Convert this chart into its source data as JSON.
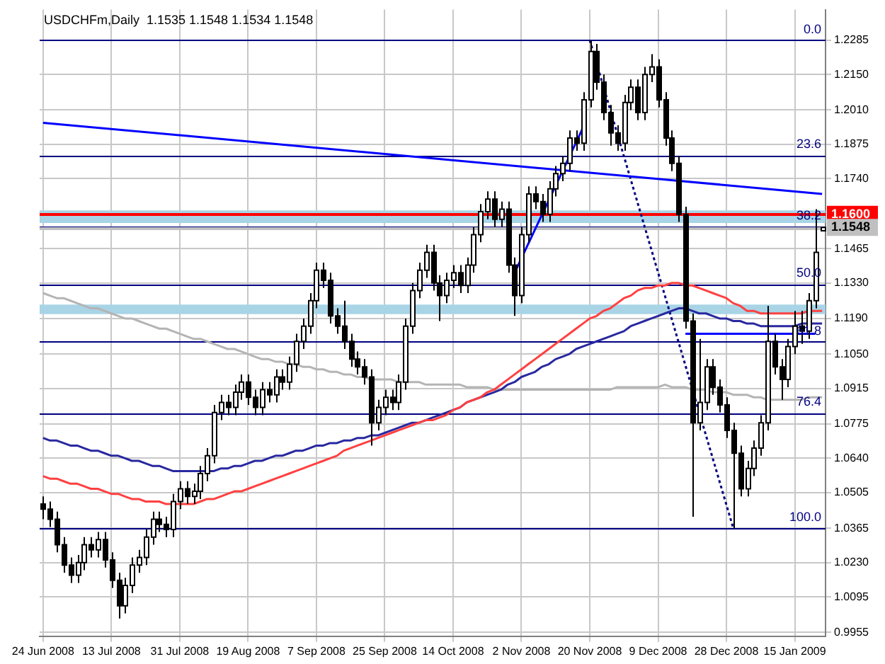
{
  "chart_data": {
    "type": "candlestick",
    "title": "USDCHFm,Daily  1.1535 1.1548 1.1534 1.1548",
    "categories": [
      "24 Jun 2008",
      null,
      null,
      null,
      null,
      null,
      null,
      null,
      null,
      null,
      "13 Jul 2008",
      null,
      null,
      null,
      null,
      null,
      null,
      null,
      null,
      null,
      "31 Jul 2008",
      null,
      null,
      null,
      null,
      null,
      null,
      null,
      null,
      null,
      "19 Aug 2008",
      null,
      null,
      null,
      null,
      null,
      null,
      null,
      null,
      null,
      "7 Sep 2008",
      null,
      null,
      null,
      null,
      null,
      null,
      null,
      null,
      null,
      "25 Sep 2008",
      null,
      null,
      null,
      null,
      null,
      null,
      null,
      null,
      null,
      "14 Oct 2008",
      null,
      null,
      null,
      null,
      null,
      null,
      null,
      null,
      null,
      "2 Nov 2008",
      null,
      null,
      null,
      null,
      null,
      null,
      null,
      null,
      null,
      "20 Nov 2008",
      null,
      null,
      null,
      null,
      null,
      null,
      null,
      null,
      null,
      "9 Dec 2008",
      null,
      null,
      null,
      null,
      null,
      null,
      null,
      null,
      null,
      "28 Dec 2008",
      null,
      null,
      null,
      null,
      null,
      null,
      null,
      null,
      null,
      "15 Jan 2009",
      null,
      null,
      null,
      null
    ],
    "color": "#000000",
    "colors": [
      "#000000",
      "#000000",
      "#000000",
      "#000000",
      "#000000",
      "#ffffff",
      "#ffffff",
      "#000000",
      "#ffffff",
      "#000000",
      "#000000",
      "#000000",
      "#ffffff",
      "#ffffff",
      "#ffffff",
      "#ffffff",
      "#ffffff",
      "#000000",
      "#000000",
      "#ffffff",
      "#ffffff",
      "#000000",
      "#ffffff",
      "#ffffff",
      "#ffffff",
      "#ffffff",
      "#ffffff",
      "#000000",
      "#ffffff",
      "#ffffff",
      "#000000",
      "#000000",
      "#ffffff",
      "#000000",
      "#ffffff",
      "#000000",
      "#ffffff",
      "#ffffff",
      "#ffffff",
      "#ffffff",
      "#ffffff",
      "#000000",
      "#000000",
      "#000000",
      "#000000",
      "#000000",
      "#000000",
      "#000000",
      "#000000",
      "#ffffff",
      "#ffffff",
      "#000000",
      "#ffffff",
      "#ffffff",
      "#ffffff",
      "#ffffff",
      "#ffffff",
      "#000000",
      "#000000",
      "#ffffff",
      "#ffffff",
      "#000000",
      "#ffffff",
      "#ffffff",
      "#ffffff",
      "#ffffff",
      "#000000",
      "#ffffff",
      "#000000",
      "#000000",
      "#ffffff",
      "#ffffff",
      "#000000",
      "#000000",
      "#ffffff",
      "#ffffff",
      "#ffffff",
      "#ffffff",
      "#000000",
      "#ffffff",
      "#ffffff",
      "#000000",
      "#000000",
      "#000000",
      "#000000",
      "#ffffff",
      "#ffffff",
      "#000000",
      "#ffffff",
      "#ffffff",
      "#000000",
      "#000000",
      "#000000",
      "#000000",
      "#000000",
      "#000000",
      "#ffffff",
      "#ffffff",
      "#000000",
      "#000000",
      "#000000",
      "#000000",
      "#000000",
      "#ffffff",
      "#ffffff",
      "#ffffff",
      "#ffffff",
      "#000000",
      "#000000",
      "#ffffff",
      "#ffffff",
      "#000000",
      "#ffffff",
      "#ffffff",
      "#ffffff"
    ],
    "ohlc": [
      [
        1.046,
        1.049,
        1.04,
        1.044
      ],
      [
        1.044,
        1.047,
        1.037,
        1.04
      ],
      [
        1.04,
        1.043,
        1.027,
        1.03
      ],
      [
        1.03,
        1.033,
        1.019,
        1.022
      ],
      [
        1.022,
        1.025,
        1.015,
        1.018
      ],
      [
        1.018,
        1.026,
        1.015,
        1.023
      ],
      [
        1.023,
        1.033,
        1.02,
        1.03
      ],
      [
        1.03,
        1.033,
        1.025,
        1.028
      ],
      [
        1.028,
        1.035,
        1.025,
        1.032
      ],
      [
        1.032,
        1.035,
        1.021,
        1.024
      ],
      [
        1.024,
        1.027,
        1.013,
        1.016
      ],
      [
        1.016,
        1.019,
        1.001,
        1.006
      ],
      [
        1.006,
        1.017,
        1.003,
        1.014
      ],
      [
        1.014,
        1.025,
        1.011,
        1.022
      ],
      [
        1.022,
        1.028,
        1.019,
        1.025
      ],
      [
        1.025,
        1.036,
        1.022,
        1.033
      ],
      [
        1.033,
        1.043,
        1.03,
        1.04
      ],
      [
        1.04,
        1.043,
        1.035,
        1.038
      ],
      [
        1.038,
        1.041,
        1.033,
        1.036
      ],
      [
        1.036,
        1.05,
        1.033,
        1.047
      ],
      [
        1.047,
        1.055,
        1.044,
        1.052
      ],
      [
        1.052,
        1.055,
        1.046,
        1.049
      ],
      [
        1.049,
        1.054,
        1.046,
        1.051
      ],
      [
        1.051,
        1.061,
        1.048,
        1.058
      ],
      [
        1.058,
        1.068,
        1.055,
        1.065
      ],
      [
        1.065,
        1.085,
        1.062,
        1.082
      ],
      [
        1.082,
        1.089,
        1.079,
        1.086
      ],
      [
        1.086,
        1.089,
        1.081,
        1.084
      ],
      [
        1.084,
        1.093,
        1.081,
        1.09
      ],
      [
        1.09,
        1.097,
        1.087,
        1.094
      ],
      [
        1.094,
        1.097,
        1.085,
        1.088
      ],
      [
        1.088,
        1.091,
        1.081,
        1.084
      ],
      [
        1.084,
        1.094,
        1.081,
        1.091
      ],
      [
        1.091,
        1.094,
        1.086,
        1.089
      ],
      [
        1.089,
        1.099,
        1.086,
        1.096
      ],
      [
        1.096,
        1.099,
        1.091,
        1.094
      ],
      [
        1.094,
        1.104,
        1.091,
        1.101
      ],
      [
        1.101,
        1.113,
        1.098,
        1.11
      ],
      [
        1.11,
        1.119,
        1.107,
        1.116
      ],
      [
        1.116,
        1.129,
        1.113,
        1.126
      ],
      [
        1.126,
        1.141,
        1.123,
        1.138
      ],
      [
        1.138,
        1.141,
        1.131,
        1.134
      ],
      [
        1.134,
        1.137,
        1.117,
        1.12
      ],
      [
        1.12,
        1.123,
        1.113,
        1.116
      ],
      [
        1.116,
        1.126,
        1.107,
        1.11
      ],
      [
        1.11,
        1.113,
        1.1,
        1.103
      ],
      [
        1.103,
        1.106,
        1.097,
        1.1
      ],
      [
        1.1,
        1.103,
        1.093,
        1.096
      ],
      [
        1.096,
        1.099,
        1.069,
        1.078
      ],
      [
        1.078,
        1.087,
        1.075,
        1.084
      ],
      [
        1.084,
        1.091,
        1.081,
        1.088
      ],
      [
        1.088,
        1.091,
        1.083,
        1.086
      ],
      [
        1.086,
        1.097,
        1.083,
        1.094
      ],
      [
        1.094,
        1.119,
        1.091,
        1.116
      ],
      [
        1.116,
        1.133,
        1.113,
        1.13
      ],
      [
        1.13,
        1.141,
        1.127,
        1.138
      ],
      [
        1.138,
        1.148,
        1.135,
        1.145
      ],
      [
        1.145,
        1.148,
        1.13,
        1.133
      ],
      [
        1.133,
        1.136,
        1.118,
        1.128
      ],
      [
        1.128,
        1.137,
        1.125,
        1.134
      ],
      [
        1.134,
        1.14,
        1.131,
        1.137
      ],
      [
        1.137,
        1.14,
        1.129,
        1.132
      ],
      [
        1.132,
        1.143,
        1.129,
        1.14
      ],
      [
        1.14,
        1.155,
        1.137,
        1.152
      ],
      [
        1.152,
        1.164,
        1.149,
        1.161
      ],
      [
        1.161,
        1.169,
        1.158,
        1.166
      ],
      [
        1.166,
        1.169,
        1.155,
        1.158
      ],
      [
        1.158,
        1.165,
        1.155,
        1.162
      ],
      [
        1.162,
        1.165,
        1.137,
        1.14
      ],
      [
        1.14,
        1.143,
        1.12,
        1.128
      ],
      [
        1.128,
        1.155,
        1.125,
        1.152
      ],
      [
        1.152,
        1.171,
        1.149,
        1.168
      ],
      [
        1.168,
        1.171,
        1.162,
        1.165
      ],
      [
        1.165,
        1.168,
        1.157,
        1.16
      ],
      [
        1.16,
        1.173,
        1.157,
        1.17
      ],
      [
        1.17,
        1.179,
        1.167,
        1.176
      ],
      [
        1.176,
        1.183,
        1.173,
        1.18
      ],
      [
        1.18,
        1.193,
        1.177,
        1.19
      ],
      [
        1.19,
        1.193,
        1.185,
        1.188
      ],
      [
        1.188,
        1.208,
        1.185,
        1.205
      ],
      [
        1.205,
        1.2285,
        1.202,
        1.224
      ],
      [
        1.224,
        1.227,
        1.209,
        1.212
      ],
      [
        1.212,
        1.215,
        1.197,
        1.2
      ],
      [
        1.2,
        1.203,
        1.187,
        1.192
      ],
      [
        1.192,
        1.195,
        1.185,
        1.188
      ],
      [
        1.188,
        1.207,
        1.185,
        1.204
      ],
      [
        1.204,
        1.213,
        1.201,
        1.21
      ],
      [
        1.21,
        1.213,
        1.197,
        1.2
      ],
      [
        1.2,
        1.218,
        1.197,
        1.215
      ],
      [
        1.215,
        1.223,
        1.212,
        1.218
      ],
      [
        1.218,
        1.221,
        1.202,
        1.205
      ],
      [
        1.205,
        1.208,
        1.187,
        1.19
      ],
      [
        1.19,
        1.193,
        1.177,
        1.18
      ],
      [
        1.18,
        1.183,
        1.157,
        1.16
      ],
      [
        1.16,
        1.163,
        1.115,
        1.118
      ],
      [
        1.118,
        1.121,
        1.041,
        1.078
      ],
      [
        1.078,
        1.111,
        1.075,
        1.086
      ],
      [
        1.086,
        1.103,
        1.083,
        1.1
      ],
      [
        1.1,
        1.103,
        1.089,
        1.092
      ],
      [
        1.092,
        1.095,
        1.082,
        1.085
      ],
      [
        1.085,
        1.088,
        1.072,
        1.075
      ],
      [
        1.075,
        1.078,
        1.0365,
        1.066
      ],
      [
        1.066,
        1.069,
        1.049,
        1.052
      ],
      [
        1.052,
        1.063,
        1.049,
        1.06
      ],
      [
        1.06,
        1.071,
        1.057,
        1.068
      ],
      [
        1.068,
        1.081,
        1.065,
        1.078
      ],
      [
        1.078,
        1.124,
        1.075,
        1.11
      ],
      [
        1.11,
        1.113,
        1.097,
        1.1
      ],
      [
        1.1,
        1.103,
        1.087,
        1.095
      ],
      [
        1.095,
        1.111,
        1.092,
        1.108
      ],
      [
        1.108,
        1.122,
        1.105,
        1.116
      ],
      [
        1.116,
        1.122,
        1.109,
        1.114
      ],
      [
        1.114,
        1.129,
        1.111,
        1.126
      ],
      [
        1.126,
        1.162,
        1.123,
        1.145
      ],
      [
        1.1535,
        1.1548,
        1.1534,
        1.1548
      ]
    ],
    "series": [
      {
        "type": "line",
        "color": "#ff4040",
        "values": [
          1.057,
          1.056,
          1.056,
          1.055,
          1.054,
          1.054,
          1.053,
          1.052,
          1.052,
          1.051,
          1.05,
          1.05,
          1.049,
          1.048,
          1.048,
          1.047,
          1.047,
          1.047,
          1.046,
          1.046,
          1.046,
          1.046,
          1.046,
          1.047,
          1.048,
          1.048,
          1.049,
          1.05,
          1.051,
          1.051,
          1.052,
          1.053,
          1.054,
          1.055,
          1.056,
          1.057,
          1.058,
          1.059,
          1.06,
          1.061,
          1.062,
          1.063,
          1.064,
          1.065,
          1.067,
          1.068,
          1.069,
          1.07,
          1.071,
          1.072,
          1.073,
          1.074,
          1.075,
          1.076,
          1.077,
          1.078,
          1.079,
          1.079,
          1.08,
          1.081,
          1.083,
          1.084,
          1.086,
          1.087,
          1.088,
          1.09,
          1.091,
          1.093,
          1.095,
          1.097,
          1.099,
          1.101,
          1.103,
          1.105,
          1.107,
          1.109,
          1.111,
          1.113,
          1.115,
          1.117,
          1.119,
          1.12,
          1.122,
          1.123,
          1.125,
          1.127,
          1.128,
          1.13,
          1.131,
          1.131,
          1.132,
          1.132,
          1.133,
          1.133,
          1.132,
          1.132,
          1.131,
          1.13,
          1.129,
          1.128,
          1.127,
          1.125,
          1.124,
          1.122,
          1.122,
          1.121,
          1.121,
          1.121,
          1.121,
          1.121,
          1.121,
          1.121,
          1.122,
          1.122,
          1.122
        ]
      },
      {
        "type": "line",
        "color": "#2828a0",
        "values": [
          1.072,
          1.071,
          1.071,
          1.07,
          1.069,
          1.069,
          1.068,
          1.067,
          1.067,
          1.066,
          1.065,
          1.065,
          1.064,
          1.063,
          1.063,
          1.062,
          1.061,
          1.061,
          1.06,
          1.059,
          1.059,
          1.059,
          1.059,
          1.059,
          1.059,
          1.059,
          1.06,
          1.06,
          1.061,
          1.061,
          1.062,
          1.063,
          1.063,
          1.064,
          1.065,
          1.065,
          1.066,
          1.067,
          1.067,
          1.068,
          1.069,
          1.069,
          1.07,
          1.07,
          1.071,
          1.071,
          1.072,
          1.072,
          1.073,
          1.073,
          1.074,
          1.075,
          1.076,
          1.077,
          1.078,
          1.078,
          1.079,
          1.08,
          1.081,
          1.082,
          1.083,
          1.084,
          1.086,
          1.087,
          1.088,
          1.089,
          1.09,
          1.091,
          1.093,
          1.094,
          1.096,
          1.097,
          1.098,
          1.1,
          1.101,
          1.103,
          1.104,
          1.105,
          1.107,
          1.108,
          1.109,
          1.11,
          1.111,
          1.112,
          1.113,
          1.114,
          1.116,
          1.117,
          1.118,
          1.119,
          1.12,
          1.121,
          1.122,
          1.123,
          1.123,
          1.122,
          1.121,
          1.121,
          1.12,
          1.119,
          1.119,
          1.118,
          1.118,
          1.117,
          1.117,
          1.116,
          1.116,
          1.116,
          1.116,
          1.116,
          1.116,
          1.117,
          1.117,
          1.117,
          1.117
        ]
      },
      {
        "type": "line",
        "color": "#b4b4b4",
        "values": [
          1.129,
          1.128,
          1.127,
          1.127,
          1.126,
          1.125,
          1.124,
          1.123,
          1.123,
          1.122,
          1.121,
          1.12,
          1.119,
          1.119,
          1.118,
          1.117,
          1.116,
          1.115,
          1.115,
          1.114,
          1.113,
          1.112,
          1.111,
          1.111,
          1.11,
          1.109,
          1.108,
          1.107,
          1.107,
          1.106,
          1.105,
          1.104,
          1.103,
          1.103,
          1.102,
          1.102,
          1.101,
          1.101,
          1.1,
          1.1,
          1.099,
          1.099,
          1.098,
          1.098,
          1.097,
          1.097,
          1.096,
          1.096,
          1.095,
          1.095,
          1.095,
          1.095,
          1.094,
          1.094,
          1.094,
          1.094,
          1.093,
          1.093,
          1.093,
          1.093,
          1.093,
          1.093,
          1.092,
          1.092,
          1.092,
          1.092,
          1.091,
          1.091,
          1.091,
          1.091,
          1.091,
          1.091,
          1.091,
          1.091,
          1.091,
          1.091,
          1.091,
          1.091,
          1.091,
          1.091,
          1.091,
          1.091,
          1.091,
          1.091,
          1.092,
          1.092,
          1.092,
          1.092,
          1.092,
          1.092,
          1.092,
          1.093,
          1.092,
          1.092,
          1.092,
          1.091,
          1.091,
          1.091,
          1.09,
          1.09,
          1.09,
          1.089,
          1.089,
          1.089,
          1.088,
          1.088,
          1.087,
          1.087,
          1.087,
          1.087,
          1.087,
          1.087,
          1.088,
          1.088,
          1.088
        ]
      },
      {
        "type": "line",
        "color": "#0000ff",
        "values": [
          1.196,
          null,
          null,
          null,
          null,
          null,
          null,
          null,
          null,
          null,
          null,
          null,
          null,
          null,
          null,
          null,
          null,
          null,
          null,
          null,
          null,
          null,
          null,
          null,
          null,
          null,
          null,
          null,
          null,
          null,
          null,
          null,
          null,
          null,
          null,
          null,
          null,
          null,
          null,
          null,
          null,
          null,
          null,
          null,
          null,
          null,
          null,
          null,
          null,
          null,
          null,
          null,
          null,
          null,
          null,
          null,
          null,
          null,
          null,
          null,
          null,
          null,
          null,
          null,
          null,
          null,
          null,
          null,
          null,
          null,
          null,
          null,
          null,
          null,
          null,
          null,
          null,
          null,
          null,
          null,
          null,
          null,
          null,
          null,
          null,
          null,
          null,
          null,
          null,
          null,
          null,
          null,
          null,
          null,
          null,
          null,
          null,
          null,
          null,
          null,
          null,
          null,
          null,
          null,
          null,
          null,
          null,
          null,
          null,
          null,
          null,
          null,
          null,
          null,
          1.168
        ]
      },
      {
        "type": "line",
        "color": "#0000ff",
        "values": [
          null,
          null,
          null,
          null,
          null,
          null,
          null,
          null,
          null,
          null,
          null,
          null,
          null,
          null,
          null,
          null,
          null,
          null,
          null,
          null,
          null,
          null,
          null,
          null,
          null,
          null,
          null,
          null,
          null,
          null,
          null,
          null,
          null,
          null,
          null,
          null,
          null,
          null,
          null,
          null,
          null,
          null,
          null,
          null,
          null,
          null,
          null,
          null,
          null,
          null,
          null,
          null,
          null,
          null,
          null,
          null,
          null,
          null,
          null,
          null,
          null,
          null,
          null,
          null,
          null,
          null,
          null,
          null,
          null,
          1.137,
          null,
          null,
          null,
          null,
          null,
          null,
          null,
          null,
          null,
          1.194,
          null,
          null,
          null,
          null,
          null,
          null,
          null,
          null,
          null,
          null,
          null,
          null,
          null,
          null,
          null,
          null,
          null,
          null,
          null,
          null,
          null,
          null,
          null,
          null,
          null,
          null,
          null,
          null,
          null,
          null,
          null,
          null,
          null,
          null,
          null
        ]
      },
      {
        "type": "line",
        "color": "#0000ff",
        "values": [
          null,
          null,
          null,
          null,
          null,
          null,
          null,
          null,
          null,
          null,
          null,
          null,
          null,
          null,
          null,
          null,
          null,
          null,
          null,
          null,
          null,
          null,
          null,
          null,
          null,
          null,
          null,
          null,
          null,
          null,
          null,
          null,
          null,
          null,
          null,
          null,
          null,
          null,
          null,
          null,
          null,
          null,
          null,
          null,
          null,
          null,
          null,
          null,
          null,
          null,
          null,
          null,
          null,
          null,
          null,
          null,
          null,
          null,
          null,
          null,
          null,
          null,
          null,
          null,
          null,
          null,
          null,
          null,
          null,
          null,
          null,
          null,
          null,
          null,
          null,
          null,
          null,
          null,
          null,
          null,
          null,
          null,
          null,
          null,
          null,
          null,
          null,
          null,
          null,
          null,
          null,
          null,
          null,
          null,
          1.113,
          null,
          null,
          null,
          null,
          null,
          null,
          null,
          null,
          null,
          null,
          null,
          null,
          null,
          null,
          null,
          null,
          null,
          null,
          1.113,
          null
        ]
      },
      {
        "type": "line",
        "color": "#000080",
        "line_style": "dotted",
        "values": [
          null,
          null,
          null,
          null,
          null,
          null,
          null,
          null,
          null,
          null,
          null,
          null,
          null,
          null,
          null,
          null,
          null,
          null,
          null,
          null,
          null,
          null,
          null,
          null,
          null,
          null,
          null,
          null,
          null,
          null,
          null,
          null,
          null,
          null,
          null,
          null,
          null,
          null,
          null,
          null,
          null,
          null,
          null,
          null,
          null,
          null,
          null,
          null,
          null,
          null,
          null,
          null,
          null,
          null,
          null,
          null,
          null,
          null,
          null,
          null,
          null,
          null,
          null,
          null,
          null,
          null,
          null,
          null,
          null,
          null,
          null,
          null,
          null,
          null,
          null,
          null,
          null,
          null,
          null,
          null,
          1.2285,
          null,
          null,
          null,
          null,
          null,
          null,
          null,
          null,
          null,
          null,
          null,
          null,
          null,
          null,
          null,
          null,
          null,
          null,
          null,
          null,
          1.0365,
          null,
          null,
          null,
          null,
          null,
          null,
          null,
          null,
          null,
          null,
          null,
          null,
          null
        ]
      }
    ],
    "marker": "none",
    "ylim": [
      0.994,
      1.2405
    ],
    "yticks": [
      1.2285,
      {
        "value": 1.215,
        "label": "1.2150"
      },
      {
        "value": 1.201,
        "label": "1.2010"
      },
      1.1875,
      {
        "value": 1.174,
        "label": "1.1740"
      },
      1.1465,
      {
        "value": 1.133,
        "label": "1.1330"
      },
      {
        "value": 1.119,
        "label": "1.1190"
      },
      {
        "value": 1.105,
        "label": "1.1050"
      },
      1.0915,
      1.0775,
      {
        "value": 1.064,
        "label": "1.0640"
      },
      1.0505,
      1.0365,
      {
        "value": 1.023,
        "label": "1.0230"
      },
      1.0095,
      0.9955
    ],
    "bands": [
      {
        "axis": "y",
        "from": 1.1566,
        "to": 1.1615,
        "color": "#a8d4e6"
      },
      {
        "axis": "y",
        "from": 1.1207,
        "to": 1.1245,
        "color": "#a8d4e6"
      }
    ],
    "ref_lines": [
      {
        "axis": "y",
        "value": 1.2285,
        "color": "#000080"
      },
      {
        "axis": "y",
        "value": 1.1832,
        "color": "#000080"
      },
      {
        "axis": "y",
        "value": 1.1552,
        "color": "#000080"
      },
      {
        "axis": "y",
        "value": 1.1325,
        "color": "#000080"
      },
      {
        "axis": "y",
        "value": 1.1098,
        "color": "#000080"
      },
      {
        "axis": "y",
        "value": 1.0818,
        "color": "#000080"
      },
      {
        "axis": "y",
        "value": 1.0365,
        "color": "#000080"
      },
      {
        "axis": "y",
        "value": 1.16,
        "label": "1.1600",
        "color": "#ff0000"
      },
      {
        "axis": "y",
        "value": 1.1548,
        "label": "1.1548",
        "color": "#c0c0c0"
      }
    ],
    "annotations": [
      {
        "text": "0.0",
        "y": 1.2285
      },
      {
        "text": "23.6",
        "y": 1.1832
      },
      {
        "text": "38.2",
        "y": 1.1552
      },
      {
        "text": "50.0",
        "y": 1.1325
      },
      {
        "text": "61.8",
        "y": 1.1098
      },
      {
        "text": "76.4",
        "y": 1.0818
      },
      {
        "text": "100.0",
        "y": 1.0365
      }
    ],
    "grid": true,
    "legend": false
  }
}
